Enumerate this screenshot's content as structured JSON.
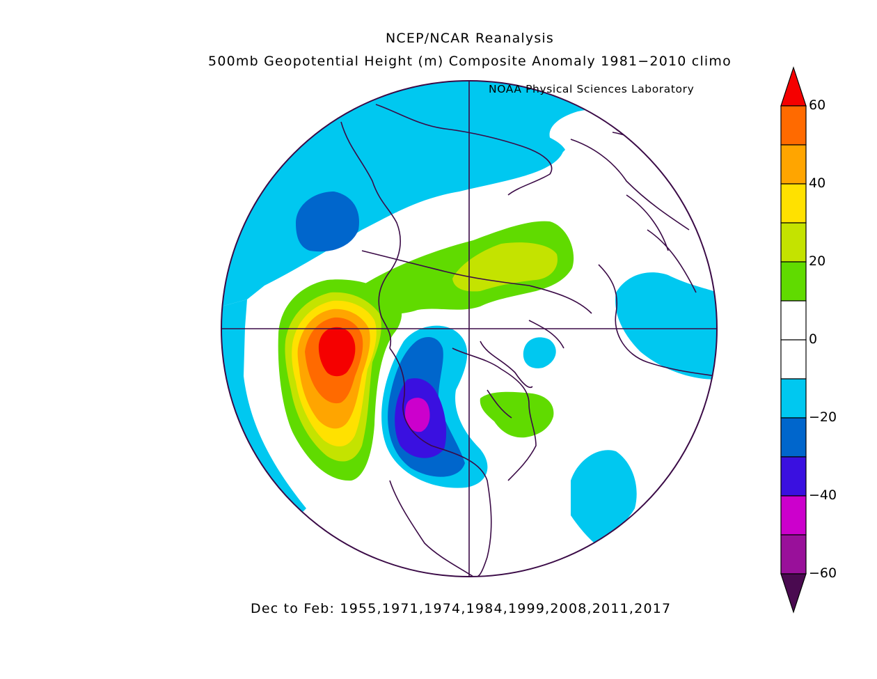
{
  "header": {
    "title": "NCEP/NCAR Reanalysis",
    "subtitle": "500mb Geopotential Height (m) Composite Anomaly 1981−2010 climo",
    "credit": "NOAA Physical Sciences Laboratory"
  },
  "footer": {
    "period": "Dec to Feb: 1955,1971,1974,1984,1999,2008,2011,2017"
  },
  "colorbar": {
    "min": -60,
    "max": 60,
    "interval": 10,
    "tick_labels": [
      "60",
      "40",
      "20",
      "0",
      "−20",
      "−40",
      "−60"
    ],
    "tick_values": [
      60,
      40,
      20,
      0,
      -20,
      -40,
      -60
    ],
    "colors_high_to_low": [
      "#f50000",
      "#ff6a00",
      "#ffa500",
      "#ffe100",
      "#c4e300",
      "#60db00",
      "#ffffff",
      "#ffffff",
      "#00c8f0",
      "#0066cc",
      "#3a10e0",
      "#cc00cc",
      "#99109a",
      "#4a0a50"
    ],
    "over_color": "#f50000",
    "under_color": "#4a0a50"
  },
  "map": {
    "projection": "polar-stereographic",
    "hemisphere": "northern",
    "field": "500mb geopotential height anomaly",
    "outline_color": "#3a0a46"
  }
}
